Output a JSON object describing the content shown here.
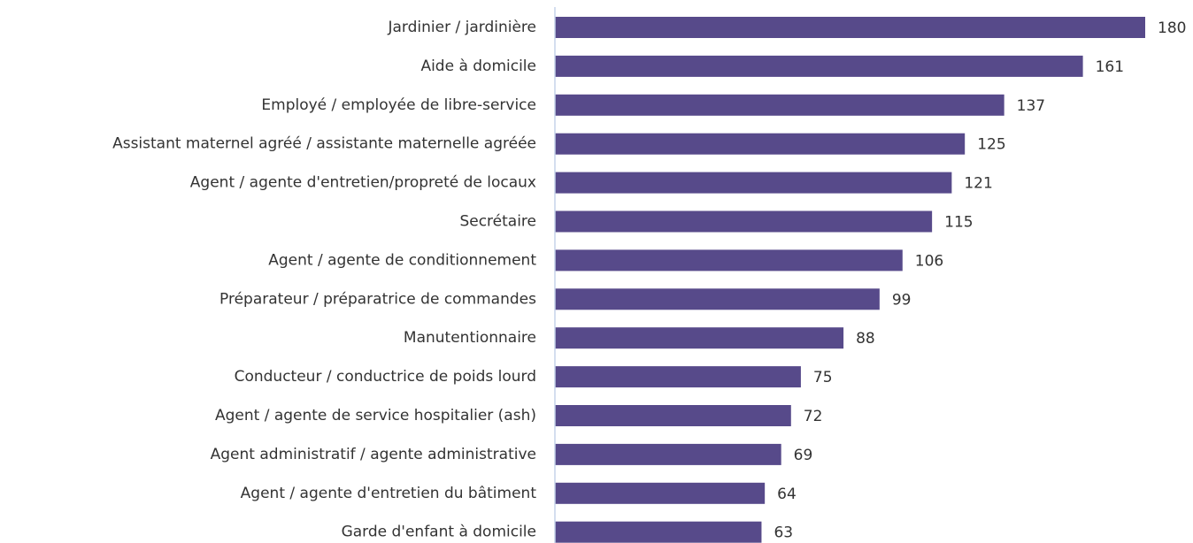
{
  "chart_data": {
    "type": "bar",
    "orientation": "horizontal",
    "color": "#574a8a",
    "categories": [
      "Jardinier / jardinière",
      "Aide à domicile",
      "Employé / employée de libre-service",
      "Assistant maternel agréé / assistante maternelle agréée",
      "Agent / agente d'entretien/propreté de locaux",
      "Secrétaire",
      "Agent / agente de conditionnement",
      "Préparateur / préparatrice de commandes",
      "Manutentionnaire",
      "Conducteur / conductrice de poids lourd",
      "Agent / agente de service hospitalier (ash)",
      "Agent administratif / agente administrative",
      "Agent / agente d'entretien du bâtiment",
      "Garde d'enfant à domicile"
    ],
    "values": [
      180,
      161,
      137,
      125,
      121,
      115,
      106,
      99,
      88,
      75,
      72,
      69,
      64,
      63
    ]
  }
}
